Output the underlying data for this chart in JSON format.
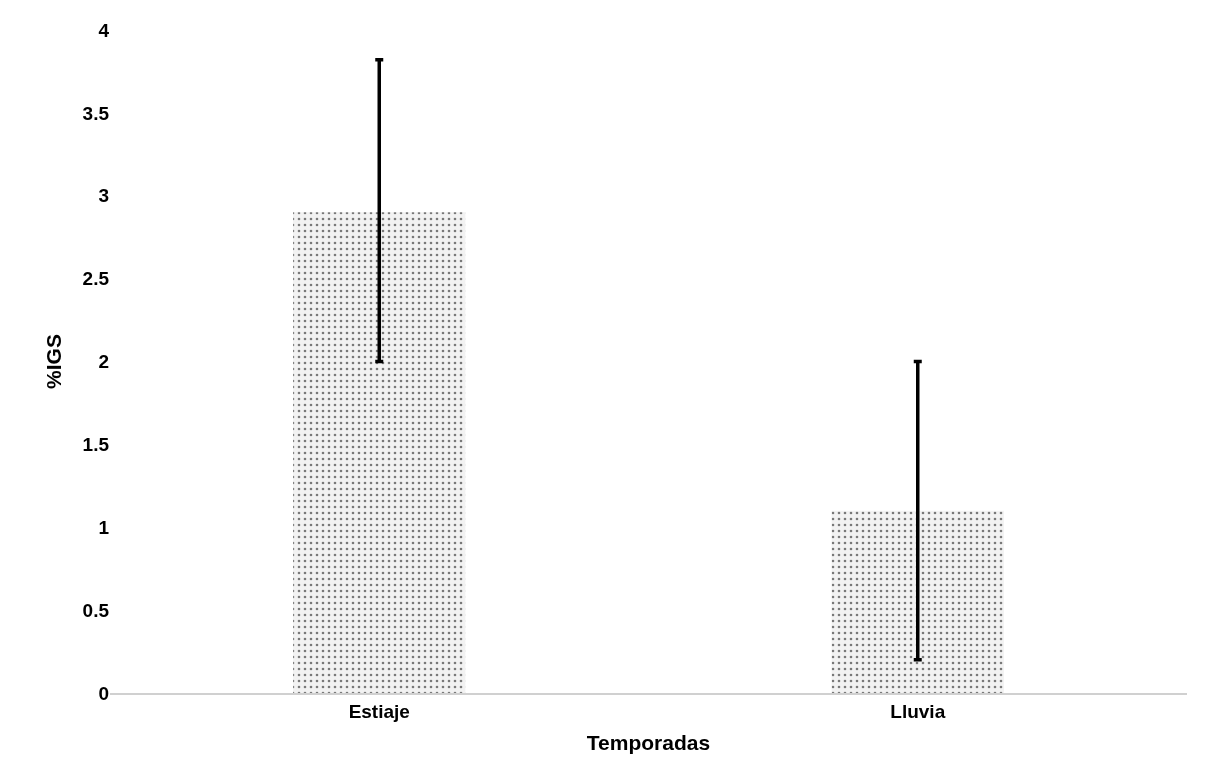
{
  "chart_data": {
    "type": "bar",
    "xlabel": "Temporadas",
    "ylabel": "%IGS",
    "categories": [
      "Estiaje",
      "Lluvia"
    ],
    "values": [
      2.9,
      1.1
    ],
    "errors": [
      [
        2.0,
        3.82
      ],
      [
        0.2,
        2.0
      ]
    ],
    "color": "#f2f2f2",
    "ylim": [
      0,
      4
    ],
    "yticks": [
      0,
      0.5,
      1,
      1.5,
      2,
      2.5,
      3,
      3.5,
      4
    ],
    "legend": false
  }
}
